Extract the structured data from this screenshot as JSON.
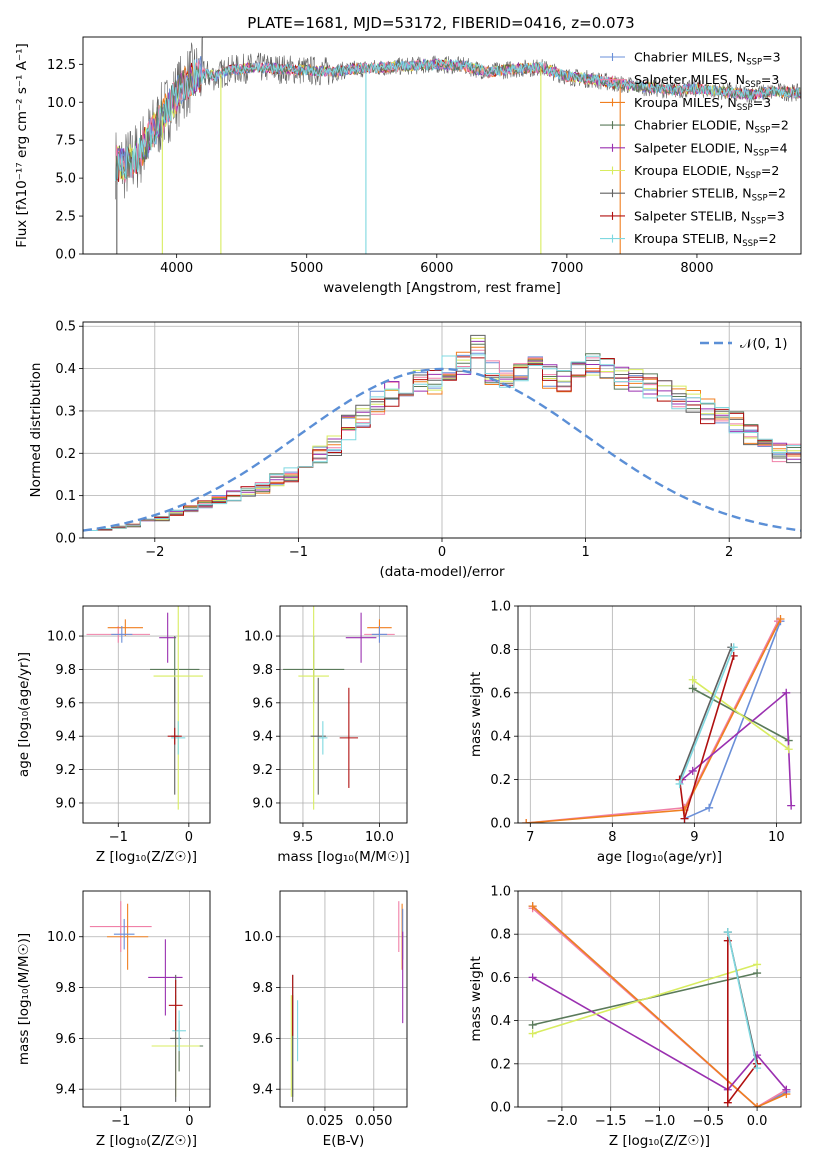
{
  "title": "PLATE=1681, MJD=53172, FIBERID=0416, z=0.073",
  "colors": [
    "#6a8fd8",
    "#f080a8",
    "#f07f20",
    "#5a7a5a",
    "#9a30b0",
    "#d8ec60",
    "#606060",
    "#b01010",
    "#7fd8e0"
  ],
  "chart_data": [
    {
      "id": "spectrum",
      "type": "line",
      "xlabel": "wavelength [Angstrom, rest frame]",
      "ylabel": "Flux [fλ10⁻¹⁷ erg cm⁻² s⁻¹ A⁻¹]",
      "xlim": [
        3280,
        8800
      ],
      "ylim": [
        0,
        14.3
      ],
      "xticks": [
        4000,
        5000,
        6000,
        7000,
        8000
      ],
      "yticks": [
        0.0,
        2.5,
        5.0,
        7.5,
        10.0,
        12.5
      ],
      "ytick_labels": [
        "0.0",
        "2.5",
        "5.0",
        "7.5",
        "10.0",
        "12.5"
      ],
      "grid": false,
      "legend_position": "right",
      "legend": [
        "Chabrier MILES, N_SSP=3",
        "Salpeter MILES, N_SSP=3",
        "Kroupa MILES, N_SSP=3",
        "Chabrier ELODIE, N_SSP=2",
        "Salpeter ELODIE, N_SSP=4",
        "Kroupa ELODIE, N_SSP=2",
        "Chabrier STELIB, N_SSP=2",
        "Salpeter STELIB, N_SSP=3",
        "Kroupa STELIB, N_SSP=2"
      ],
      "continuum": [
        [
          3530,
          6.0
        ],
        [
          3600,
          5.8
        ],
        [
          3700,
          6.5
        ],
        [
          3800,
          7.8
        ],
        [
          3900,
          9.2
        ],
        [
          3950,
          9.8
        ],
        [
          4000,
          10.5
        ],
        [
          4100,
          11.5
        ],
        [
          4200,
          11.9
        ],
        [
          4300,
          11.7
        ],
        [
          4400,
          12.1
        ],
        [
          4600,
          12.3
        ],
        [
          4800,
          12.2
        ],
        [
          5000,
          12.1
        ],
        [
          5200,
          12.0
        ],
        [
          5400,
          12.2
        ],
        [
          5600,
          12.3
        ],
        [
          5800,
          12.4
        ],
        [
          6000,
          12.5
        ],
        [
          6200,
          12.4
        ],
        [
          6400,
          12.0
        ],
        [
          6600,
          12.2
        ],
        [
          6800,
          12.3
        ],
        [
          7000,
          11.7
        ],
        [
          7200,
          11.5
        ],
        [
          7400,
          11.2
        ],
        [
          7600,
          11.0
        ],
        [
          7800,
          10.8
        ],
        [
          8000,
          10.9
        ],
        [
          8200,
          10.7
        ],
        [
          8400,
          10.5
        ],
        [
          8600,
          10.7
        ],
        [
          8800,
          10.6
        ]
      ]
    },
    {
      "id": "residuals",
      "type": "histogram",
      "xlabel": "(data-model)/error",
      "ylabel": "Normed distribution",
      "xlim": [
        -2.5,
        2.5
      ],
      "ylim": [
        0,
        0.51
      ],
      "xticks": [
        -2,
        -1,
        0,
        1,
        2
      ],
      "xtick_labels": [
        "−2",
        "−1",
        "0",
        "1",
        "2"
      ],
      "yticks": [
        0.0,
        0.1,
        0.2,
        0.3,
        0.4,
        0.5
      ],
      "ytick_labels": [
        "0.0",
        "0.1",
        "0.2",
        "0.3",
        "0.4",
        "0.5"
      ],
      "grid": true,
      "legend": [
        "𝒩(0, 1)"
      ],
      "bin_width": 0.1,
      "bin_start": -2.5,
      "base_values": [
        0.02,
        0.02,
        0.025,
        0.03,
        0.04,
        0.045,
        0.06,
        0.07,
        0.08,
        0.09,
        0.1,
        0.11,
        0.12,
        0.14,
        0.15,
        0.17,
        0.2,
        0.22,
        0.26,
        0.29,
        0.32,
        0.34,
        0.35,
        0.37,
        0.37,
        0.4,
        0.41,
        0.45,
        0.39,
        0.38,
        0.4,
        0.42,
        0.38,
        0.37,
        0.39,
        0.41,
        0.4,
        0.38,
        0.37,
        0.36,
        0.35,
        0.33,
        0.32,
        0.3,
        0.29,
        0.27,
        0.25,
        0.22,
        0.2,
        0.2,
        0.17,
        0.15,
        0.14,
        0.12,
        0.11,
        0.1,
        0.09,
        0.08,
        0.07,
        0.06,
        0.06,
        0.05,
        0.045,
        0.04,
        0.035,
        0.03,
        0.03,
        0.03,
        0.03,
        0.03
      ]
    },
    {
      "id": "age-vs-Z",
      "type": "scatter",
      "xlabel": "Z [log₁₀(Z/Z☉)]",
      "ylabel": "age  [log₁₀(age/yr)]",
      "xlim": [
        -1.5,
        0.3
      ],
      "ylim": [
        8.88,
        10.18
      ],
      "xticks": [
        -1,
        0
      ],
      "xtick_labels": [
        "−1",
        "0"
      ],
      "yticks": [
        9.0,
        9.2,
        9.4,
        9.6,
        9.8,
        10.0
      ],
      "ytick_labels": [
        "9.0",
        "9.2",
        "9.4",
        "9.6",
        "9.8",
        "10.0"
      ],
      "grid": true,
      "points": [
        {
          "x": -1.0,
          "y": 10.01,
          "xerr": 0.45,
          "yerr": 0.05,
          "c": 1
        },
        {
          "x": -0.9,
          "y": 10.05,
          "xerr": 0.25,
          "yerr": 0.05,
          "c": 2
        },
        {
          "x": -0.95,
          "y": 10.01,
          "xerr": 0.15,
          "yerr": 0.05,
          "c": 0
        },
        {
          "x": -0.3,
          "y": 9.99,
          "xerr": 0.12,
          "yerr": 0.15,
          "c": 4
        },
        {
          "x": -0.2,
          "y": 9.8,
          "xerr": 0.35,
          "yerr": 0.2,
          "c": 3
        },
        {
          "x": -0.15,
          "y": 9.76,
          "xerr": 0.35,
          "yerr": 0.8,
          "c": 5
        },
        {
          "x": -0.2,
          "y": 9.4,
          "xerr": 0.05,
          "yerr": 0.35,
          "c": 6
        },
        {
          "x": -0.15,
          "y": 9.39,
          "xerr": 0.1,
          "yerr": 0.1,
          "c": 8
        },
        {
          "x": -0.2,
          "y": 9.4,
          "xerr": 0.1,
          "yerr": 0.05,
          "c": 7
        }
      ]
    },
    {
      "id": "age-vs-mass",
      "type": "scatter",
      "xlabel": "mass [log₁₀(M/M☉)]",
      "ylabel": "",
      "xlim": [
        9.35,
        10.18
      ],
      "ylim": [
        8.88,
        10.18
      ],
      "xticks": [
        9.5,
        10.0
      ],
      "xtick_labels": [
        "9.5",
        "10.0"
      ],
      "yticks": [
        9.0,
        9.2,
        9.4,
        9.6,
        9.8,
        10.0
      ],
      "ytick_labels": [
        "9.0",
        "9.2",
        "9.4",
        "9.6",
        "9.8",
        "10.0"
      ],
      "grid": true,
      "points": [
        {
          "x": 10.0,
          "y": 10.01,
          "xerr": 0.1,
          "yerr": 0.05,
          "c": 1
        },
        {
          "x": 10.0,
          "y": 10.05,
          "xerr": 0.08,
          "yerr": 0.05,
          "c": 2
        },
        {
          "x": 10.0,
          "y": 10.01,
          "xerr": 0.05,
          "yerr": 0.05,
          "c": 0
        },
        {
          "x": 9.88,
          "y": 9.99,
          "xerr": 0.1,
          "yerr": 0.15,
          "c": 4
        },
        {
          "x": 9.57,
          "y": 9.8,
          "xerr": 0.2,
          "yerr": 0.2,
          "c": 3
        },
        {
          "x": 9.57,
          "y": 9.76,
          "xerr": 0.1,
          "yerr": 0.8,
          "c": 5
        },
        {
          "x": 9.6,
          "y": 9.4,
          "xerr": 0.05,
          "yerr": 0.35,
          "c": 6
        },
        {
          "x": 9.63,
          "y": 9.39,
          "xerr": 0.03,
          "yerr": 0.1,
          "c": 8
        },
        {
          "x": 9.8,
          "y": 9.39,
          "xerr": 0.06,
          "yerr": 0.3,
          "c": 7
        }
      ]
    },
    {
      "id": "massweight-vs-age",
      "type": "line",
      "xlabel": "age  [log₁₀(age/yr)]",
      "ylabel": "mass weight",
      "xlim": [
        6.85,
        10.3
      ],
      "ylim": [
        0,
        1.0
      ],
      "xticks": [
        7,
        8,
        9,
        10
      ],
      "yticks": [
        0.0,
        0.2,
        0.4,
        0.6,
        0.8,
        1.0
      ],
      "ytick_labels": [
        "0.0",
        "0.2",
        "0.4",
        "0.6",
        "0.8",
        "1.0"
      ],
      "grid": true,
      "series": [
        {
          "c": 0,
          "x": [
            8.88,
            9.18,
            10.05
          ],
          "y": [
            0.02,
            0.07,
            0.93
          ]
        },
        {
          "c": 1,
          "x": [
            6.95,
            8.88,
            10.02
          ],
          "y": [
            0.0,
            0.07,
            0.93
          ]
        },
        {
          "c": 2,
          "x": [
            6.95,
            8.88,
            10.05
          ],
          "y": [
            0.0,
            0.06,
            0.94
          ]
        },
        {
          "c": 3,
          "x": [
            8.98,
            10.15
          ],
          "y": [
            0.62,
            0.38
          ]
        },
        {
          "c": 4,
          "x": [
            8.85,
            8.98,
            10.12,
            10.18
          ],
          "y": [
            0.2,
            0.24,
            0.6,
            0.08
          ]
        },
        {
          "c": 5,
          "x": [
            8.98,
            10.15
          ],
          "y": [
            0.66,
            0.34
          ]
        },
        {
          "c": 6,
          "x": [
            8.82,
            9.45
          ],
          "y": [
            0.2,
            0.81
          ]
        },
        {
          "c": 7,
          "x": [
            8.82,
            8.88,
            9.48
          ],
          "y": [
            0.2,
            0.02,
            0.77
          ]
        },
        {
          "c": 8,
          "x": [
            8.82,
            9.48
          ],
          "y": [
            0.18,
            0.81
          ]
        }
      ]
    },
    {
      "id": "mass-vs-Z",
      "type": "scatter",
      "xlabel": "Z [log₁₀(Z/Z☉)]",
      "ylabel": "mass [log₁₀(M/M☉)]",
      "xlim": [
        -1.55,
        0.3
      ],
      "ylim": [
        9.33,
        10.18
      ],
      "xticks": [
        -1,
        0
      ],
      "xtick_labels": [
        "−1",
        "0"
      ],
      "yticks": [
        9.4,
        9.6,
        9.8,
        10.0
      ],
      "ytick_labels": [
        "9.4",
        "9.6",
        "9.8",
        "10.0"
      ],
      "grid": true,
      "points": [
        {
          "x": -1.0,
          "y": 10.04,
          "xerr": 0.45,
          "yerr": 0.1,
          "c": 1
        },
        {
          "x": -0.9,
          "y": 10.0,
          "xerr": 0.3,
          "yerr": 0.13,
          "c": 2
        },
        {
          "x": -0.95,
          "y": 10.01,
          "xerr": 0.15,
          "yerr": 0.06,
          "c": 0
        },
        {
          "x": -0.35,
          "y": 9.84,
          "xerr": 0.25,
          "yerr": 0.15,
          "c": 4
        },
        {
          "x": -0.15,
          "y": 9.57,
          "xerr": 0.35,
          "yerr": 0.1,
          "c": 3
        },
        {
          "x": -0.2,
          "y": 9.57,
          "xerr": 0.35,
          "yerr": 0.2,
          "c": 5
        },
        {
          "x": -0.2,
          "y": 9.6,
          "xerr": 0.08,
          "yerr": 0.25,
          "c": 6
        },
        {
          "x": -0.15,
          "y": 9.63,
          "xerr": 0.1,
          "yerr": 0.08,
          "c": 8
        },
        {
          "x": -0.2,
          "y": 9.73,
          "xerr": 0.1,
          "yerr": 0.1,
          "c": 7
        }
      ]
    },
    {
      "id": "mass-vs-ebv",
      "type": "scatter",
      "xlabel": "E(B-V)",
      "ylabel": "",
      "xlim": [
        0.002,
        0.067
      ],
      "ylim": [
        9.33,
        10.18
      ],
      "xticks": [
        0.025,
        0.05
      ],
      "xtick_labels": [
        "0.025",
        "0.050"
      ],
      "yticks": [
        9.4,
        9.6,
        9.8,
        10.0
      ],
      "ytick_labels": [
        "9.4",
        "9.6",
        "9.8",
        "10.0"
      ],
      "grid": true,
      "points": [
        {
          "x": 0.0628,
          "y": 10.04,
          "xerr": 0.0,
          "yerr": 0.1,
          "c": 1
        },
        {
          "x": 0.0645,
          "y": 10.0,
          "xerr": 0.0,
          "yerr": 0.13,
          "c": 2
        },
        {
          "x": 0.0648,
          "y": 10.01,
          "xerr": 0.0,
          "yerr": 0.1,
          "c": 0
        },
        {
          "x": 0.0648,
          "y": 9.84,
          "xerr": 0.0,
          "yerr": 0.18,
          "c": 4
        },
        {
          "x": 0.0085,
          "y": 9.57,
          "xerr": 0.0,
          "yerr": 0.2,
          "c": 3
        },
        {
          "x": 0.0078,
          "y": 9.57,
          "xerr": 0.0,
          "yerr": 0.2,
          "c": 5
        },
        {
          "x": 0.0085,
          "y": 9.6,
          "xerr": 0.0,
          "yerr": 0.25,
          "c": 6
        },
        {
          "x": 0.011,
          "y": 9.63,
          "xerr": 0.0,
          "yerr": 0.12,
          "c": 8
        },
        {
          "x": 0.0085,
          "y": 9.73,
          "xerr": 0.0,
          "yerr": 0.12,
          "c": 7
        }
      ]
    },
    {
      "id": "massweight-vs-Z",
      "type": "line",
      "xlabel": "Z [log₁₀(Z/Z☉)]",
      "ylabel": "mass weight",
      "xlim": [
        -2.45,
        0.45
      ],
      "ylim": [
        0,
        1.0
      ],
      "xticks": [
        -2.0,
        -1.5,
        -1.0,
        -0.5,
        0.0
      ],
      "xtick_labels": [
        "−2.0",
        "−1.5",
        "−1.0",
        "−0.5",
        "0.0"
      ],
      "yticks": [
        0.0,
        0.2,
        0.4,
        0.6,
        0.8,
        1.0
      ],
      "ytick_labels": [
        "0.0",
        "0.2",
        "0.4",
        "0.6",
        "0.8",
        "1.0"
      ],
      "grid": true,
      "series": [
        {
          "c": 0,
          "x": [
            -2.3,
            0.0,
            0.3
          ],
          "y": [
            0.93,
            0.0,
            0.07
          ]
        },
        {
          "c": 1,
          "x": [
            -2.3,
            0.0,
            0.3
          ],
          "y": [
            0.92,
            0.0,
            0.08
          ]
        },
        {
          "c": 2,
          "x": [
            -2.3,
            0.0,
            0.3
          ],
          "y": [
            0.93,
            0.0,
            0.06
          ]
        },
        {
          "c": 3,
          "x": [
            -2.3,
            0.0
          ],
          "y": [
            0.38,
            0.62
          ]
        },
        {
          "c": 4,
          "x": [
            -2.3,
            -0.3,
            0.0,
            0.3
          ],
          "y": [
            0.6,
            0.08,
            0.24,
            0.08
          ]
        },
        {
          "c": 5,
          "x": [
            -2.3,
            0.0
          ],
          "y": [
            0.34,
            0.66
          ]
        },
        {
          "c": 6,
          "x": [
            -0.3,
            0.0
          ],
          "y": [
            0.81,
            0.2
          ]
        },
        {
          "c": 7,
          "x": [
            -0.3,
            -0.3,
            0.0
          ],
          "y": [
            0.77,
            0.02,
            0.2
          ]
        },
        {
          "c": 8,
          "x": [
            -0.3,
            0.0
          ],
          "y": [
            0.81,
            0.18
          ]
        }
      ]
    }
  ]
}
